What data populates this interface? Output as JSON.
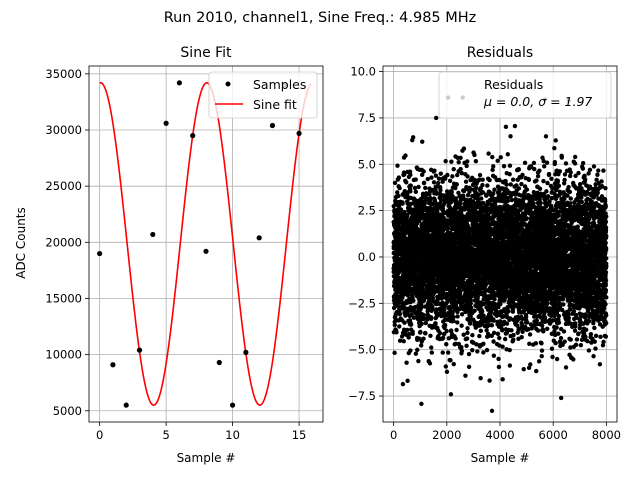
{
  "suptitle": "Run 2010, channel1, Sine Freq.: 4.985 MHz",
  "chart_data": [
    {
      "type": "line",
      "title": "Sine Fit",
      "xlabel": "Sample #",
      "ylabel": "ADC Counts",
      "xlim": [
        -0.8,
        16.8
      ],
      "ylim": [
        4000,
        35700
      ],
      "xticks": [
        0,
        5,
        10,
        15
      ],
      "yticks": [
        5000,
        10000,
        15000,
        20000,
        25000,
        30000,
        35000
      ],
      "grid": true,
      "legend_position": "upper-right",
      "legend": [
        "Samples",
        "Sine fit"
      ],
      "series": [
        {
          "name": "Samples",
          "kind": "scatter",
          "color": "#000000",
          "x": [
            0,
            1,
            2,
            3,
            4,
            5,
            6,
            7,
            8,
            9,
            10,
            11,
            12,
            13,
            14,
            15
          ],
          "y": [
            19000,
            9100,
            5500,
            10400,
            20700,
            30600,
            34200,
            29500,
            19200,
            9300,
            5500,
            10200,
            20400,
            30400,
            34000,
            29700
          ]
        },
        {
          "name": "Sine fit",
          "kind": "line",
          "color": "#ff0000",
          "model": {
            "offset": 19850,
            "amplitude": 14350,
            "period": 7.98,
            "phase": -0.06,
            "x_min": 0,
            "x_max": 15.9
          }
        }
      ]
    },
    {
      "type": "scatter",
      "title": "Residuals",
      "xlabel": "Sample #",
      "ylabel": "",
      "xlim": [
        -400,
        8400
      ],
      "ylim": [
        -8.9,
        10.3
      ],
      "xticks": [
        0,
        2000,
        4000,
        6000,
        8000
      ],
      "yticks": [
        -7.5,
        -5.0,
        -2.5,
        0.0,
        2.5,
        5.0,
        7.5,
        10.0
      ],
      "ytick_labels": [
        "−7.5",
        "−5.0",
        "−2.5",
        "0.0",
        "2.5",
        "5.0",
        "7.5",
        "10.0"
      ],
      "grid": true,
      "legend_position": "upper-right",
      "legend": [
        "Residuals",
        "μ = 0.0, σ = 1.97"
      ],
      "series": [
        {
          "name": "Residuals",
          "color": "#000000",
          "n_points": 8000,
          "mean": 0.0,
          "std": 1.97,
          "outliers": [
            {
              "x": 1600,
              "y": 7.5
            },
            {
              "x": 2050,
              "y": 8.6
            },
            {
              "x": 2600,
              "y": 8.6
            },
            {
              "x": 5700,
              "y": 8.5
            },
            {
              "x": 3700,
              "y": -8.3
            },
            {
              "x": 6300,
              "y": -7.6
            },
            {
              "x": 2700,
              "y": -6.4
            },
            {
              "x": 4100,
              "y": -6.6
            },
            {
              "x": 700,
              "y": 6.3
            }
          ]
        }
      ]
    }
  ]
}
